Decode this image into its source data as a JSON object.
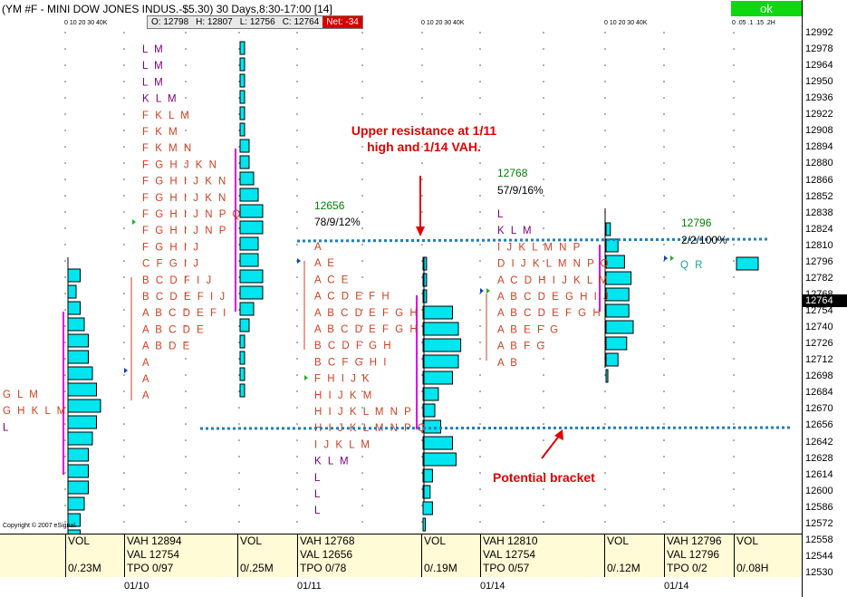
{
  "window": {
    "title": "(YM #F - MINI DOW JONES INDUS.-$5.30) 30 Days,8:30-17:00 [14]",
    "ok_label": "ok"
  },
  "quote_bar": {
    "open": "O: 12798",
    "high": "H: 12807",
    "low": "L: 12756",
    "close": "C: 12764",
    "net": "Net: -34"
  },
  "scale_labels": [
    {
      "text": "0 10 20 30 40K"
    },
    {
      "text": "0 10 20 30 40K"
    },
    {
      "text": "0 10 20 30 40K"
    },
    {
      "text": "0 .05 .1 .15 .2H"
    }
  ],
  "price_axis": {
    "ticks": [
      "12992",
      "12978",
      "12964",
      "12950",
      "12936",
      "12922",
      "12908",
      "12894",
      "12880",
      "12866",
      "12852",
      "12838",
      "12824",
      "12810",
      "12796",
      "12782",
      "12768",
      "12754",
      "12740",
      "12726",
      "12712",
      "12698",
      "12684",
      "12670",
      "12656",
      "12642",
      "12628",
      "12614",
      "12600",
      "12586",
      "12572",
      "12558",
      "12544",
      "12530"
    ],
    "current_price": "12764"
  },
  "profiles": [
    {
      "rows": [
        "L M",
        "L M",
        "L M",
        "K L M",
        "F K L M",
        "F K M",
        "F K M N",
        "F G H J K N",
        "F G H I J K N",
        "F G H I J K N",
        "F G H I J N P Q",
        "F G H I J N P",
        "F G H I J",
        "C F G I J",
        "B C D F I J",
        "B C D E F I J",
        "A B C D E F I",
        "A B C D E",
        "A B D E",
        "A",
        "A",
        "A"
      ]
    },
    {
      "rows": [
        "A",
        "A E",
        "A C E",
        "A C D E F H",
        "A B C D E F G H",
        "A B C D E F G H",
        "B C D F G H",
        "B C F G H I",
        "F H I J K",
        "H I J K M",
        "H I J K L M N P",
        "H I J K L M N P Q",
        "I J K L M",
        "K L M",
        "L",
        "L",
        "L"
      ]
    },
    {
      "rows": [
        "L",
        "K L M",
        "I J K L M N P",
        "D I J K L M N P Q",
        "A C D H I J K L M",
        "A B C D E G H I J",
        "A B C D E F G H",
        "A B E F G",
        "A B F G",
        "A B"
      ]
    },
    {
      "rows": [
        "G L M",
        "G H K L M",
        "L"
      ]
    },
    {
      "rows": [
        "Q R"
      ]
    }
  ],
  "info_labels": [
    {
      "value": "12656",
      "stat": "78/9/12%"
    },
    {
      "value": "12768",
      "stat": "57/9/16%"
    },
    {
      "value": "12796",
      "stat": "2/2/100%"
    }
  ],
  "annotations": {
    "resistance": "Upper resistance at 1/11\nhigh and 1/14 VAH.",
    "bracket": "Potential bracket"
  },
  "stats": [
    {
      "lines": [
        "VOL",
        "",
        "0/.23M"
      ]
    },
    {
      "lines": [
        "VAH 12894",
        "VAL 12754",
        "TPO 0/97"
      ]
    },
    {
      "lines": [
        "VOL",
        "",
        "0/.25M"
      ]
    },
    {
      "lines": [
        "VAH 12768",
        "VAL 12656",
        "TPO 0/78"
      ]
    },
    {
      "lines": [
        "VOL",
        "",
        "0/.19M"
      ]
    },
    {
      "lines": [
        "VAH 12810",
        "VAL 12754",
        "TPO 0/57"
      ]
    },
    {
      "lines": [
        "VOL",
        "",
        "0/.12M"
      ]
    },
    {
      "lines": [
        "VAH 12796",
        "VAL 12796",
        "TPO 0/2"
      ]
    },
    {
      "lines": [
        "VOL",
        "",
        "0/.08H"
      ]
    }
  ],
  "dates": [
    "01/10",
    "01/11",
    "01/14",
    "01/14"
  ],
  "copyright": "Copyright © 2007 eSignal.",
  "colors": {
    "bar_fill": "#00e5ee",
    "value_area_line": "#e000e0",
    "tpo_dark": "#800080",
    "tpo_red": "#d04020",
    "dotted_line": "#1e7fc0",
    "annotation": "#e00000"
  },
  "volume_bars": [
    {
      "group": 0,
      "values": [
        1.5,
        1,
        1.5,
        2,
        2.5,
        2.5,
        3,
        3.5,
        4,
        3.5,
        3,
        2.5,
        2.5,
        2.5,
        2,
        1.5,
        1.5,
        1,
        1,
        1,
        1
      ]
    },
    {
      "group": 1,
      "values": [
        0.5,
        0.5,
        0.5,
        0.5,
        0.5,
        0.5,
        1,
        1,
        1.5,
        2,
        2.5,
        2.5,
        2,
        2,
        2.5,
        2.5,
        1.5,
        1,
        0.5,
        0.5,
        0.5,
        0.5
      ]
    },
    {
      "group": 2,
      "values": [
        0.3,
        0.3,
        0.3,
        2.5,
        3,
        3.2,
        3,
        2.5,
        1.3,
        1,
        1.5,
        2.5,
        2.8,
        0.8,
        0.6,
        0.8,
        0.2,
        0.2
      ]
    },
    {
      "group": 3,
      "values": [
        0.4,
        1.1,
        1.7,
        2.3,
        2.1,
        2.1,
        2.5,
        1.9,
        1.1,
        0.1
      ]
    },
    {
      "group": 4,
      "values": [
        2.0
      ]
    }
  ]
}
